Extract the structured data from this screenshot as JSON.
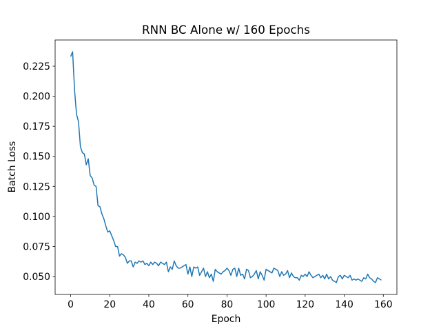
{
  "chart_data": {
    "type": "line",
    "title": "RNN BC Alone w/ 160 Epochs",
    "x_label": "Epoch",
    "y_label": "Batch Loss",
    "color": "#1f77b4",
    "x": [
      0,
      1,
      2,
      3,
      4,
      5,
      6,
      7,
      8,
      9,
      10,
      11,
      12,
      13,
      14,
      15,
      16,
      17,
      18,
      19,
      20,
      21,
      22,
      23,
      24,
      25,
      26,
      27,
      28,
      29,
      30,
      31,
      32,
      33,
      34,
      35,
      36,
      37,
      38,
      39,
      40,
      41,
      42,
      43,
      44,
      45,
      46,
      47,
      48,
      49,
      50,
      51,
      52,
      53,
      54,
      55,
      56,
      57,
      58,
      59,
      60,
      61,
      62,
      63,
      64,
      65,
      66,
      67,
      68,
      69,
      70,
      71,
      72,
      73,
      74,
      75,
      76,
      77,
      78,
      79,
      80,
      81,
      82,
      83,
      84,
      85,
      86,
      87,
      88,
      89,
      90,
      91,
      92,
      93,
      94,
      95,
      96,
      97,
      98,
      99,
      100,
      101,
      102,
      103,
      104,
      105,
      106,
      107,
      108,
      109,
      110,
      111,
      112,
      113,
      114,
      115,
      116,
      117,
      118,
      119,
      120,
      121,
      122,
      123,
      124,
      125,
      126,
      127,
      128,
      129,
      130,
      131,
      132,
      133,
      134,
      135,
      136,
      137,
      138,
      139,
      140,
      141,
      142,
      143,
      144,
      145,
      146,
      147,
      148,
      149,
      150,
      151,
      152,
      153,
      154,
      155,
      156,
      157,
      158,
      159
    ],
    "values": [
      0.233,
      0.237,
      0.205,
      0.185,
      0.179,
      0.158,
      0.153,
      0.152,
      0.143,
      0.148,
      0.134,
      0.132,
      0.126,
      0.125,
      0.109,
      0.108,
      0.102,
      0.098,
      0.092,
      0.087,
      0.088,
      0.084,
      0.08,
      0.075,
      0.075,
      0.067,
      0.069,
      0.068,
      0.066,
      0.061,
      0.063,
      0.063,
      0.058,
      0.062,
      0.061,
      0.063,
      0.062,
      0.063,
      0.06,
      0.061,
      0.059,
      0.062,
      0.06,
      0.062,
      0.061,
      0.059,
      0.062,
      0.061,
      0.06,
      0.062,
      0.054,
      0.058,
      0.056,
      0.063,
      0.059,
      0.057,
      0.057,
      0.058,
      0.059,
      0.06,
      0.052,
      0.058,
      0.05,
      0.058,
      0.057,
      0.058,
      0.051,
      0.054,
      0.057,
      0.05,
      0.054,
      0.049,
      0.052,
      0.046,
      0.056,
      0.054,
      0.053,
      0.052,
      0.054,
      0.055,
      0.057,
      0.055,
      0.051,
      0.056,
      0.057,
      0.05,
      0.057,
      0.051,
      0.052,
      0.048,
      0.056,
      0.055,
      0.049,
      0.05,
      0.052,
      0.055,
      0.048,
      0.054,
      0.051,
      0.047,
      0.056,
      0.055,
      0.054,
      0.053,
      0.057,
      0.056,
      0.055,
      0.05,
      0.054,
      0.051,
      0.052,
      0.055,
      0.049,
      0.053,
      0.05,
      0.049,
      0.049,
      0.047,
      0.051,
      0.05,
      0.052,
      0.05,
      0.054,
      0.051,
      0.049,
      0.05,
      0.051,
      0.052,
      0.049,
      0.051,
      0.048,
      0.052,
      0.048,
      0.05,
      0.047,
      0.046,
      0.045,
      0.05,
      0.051,
      0.048,
      0.051,
      0.05,
      0.049,
      0.051,
      0.047,
      0.048,
      0.047,
      0.048,
      0.047,
      0.046,
      0.049,
      0.048,
      0.052,
      0.049,
      0.048,
      0.046,
      0.045,
      0.049,
      0.048,
      0.047
    ],
    "xlim": [
      -7.95,
      166.95
    ],
    "xticks": [
      0,
      20,
      40,
      60,
      80,
      100,
      120,
      140,
      160
    ],
    "ylim": [
      0.0351,
      0.2468
    ],
    "yticks": [
      {
        "value": 0.05,
        "label": "0.050"
      },
      {
        "value": 0.075,
        "label": "0.075"
      },
      {
        "value": 0.1,
        "label": "0.100"
      },
      {
        "value": 0.125,
        "label": "0.125"
      },
      {
        "value": 0.15,
        "label": "0.150"
      },
      {
        "value": 0.175,
        "label": "0.175"
      },
      {
        "value": 0.2,
        "label": "0.200"
      },
      {
        "value": 0.225,
        "label": "0.225"
      }
    ],
    "grid": false
  }
}
